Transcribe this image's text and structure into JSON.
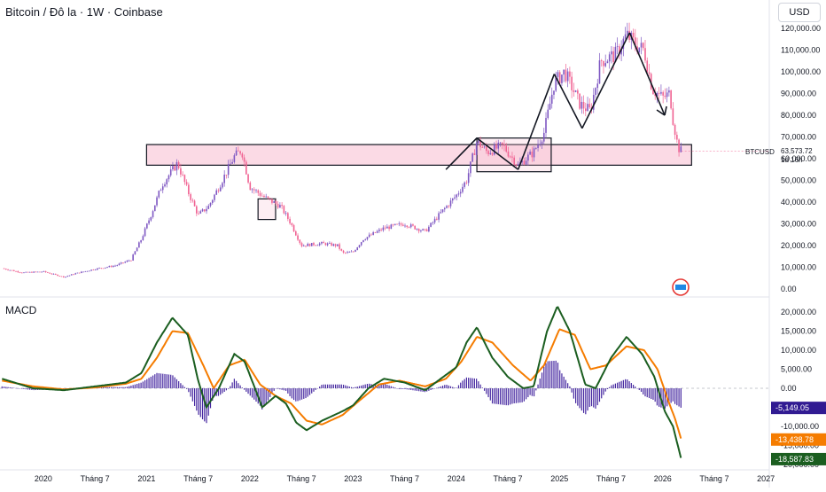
{
  "header": {
    "symbol_title": "Bitcoin / Đô la · 1W · Coinbase",
    "currency": "USD"
  },
  "price_panel": {
    "symbol": "BTCUSD",
    "last_price": "63,573.72",
    "countdown": "1d 16h"
  },
  "macd_panel": {
    "title": "MACD",
    "values": [
      {
        "label": "-5,149.05",
        "value": -5149.05,
        "color": "#311b92"
      },
      {
        "label": "-13,438.78",
        "value": -13438.78,
        "color": "#f57c00"
      },
      {
        "label": "-18,587.83",
        "value": -18587.83,
        "color": "#1b5e20"
      }
    ]
  },
  "colors": {
    "up_candle": "#7e57c2",
    "down_candle": "#f06292",
    "zone_fill": "#f8bbd0",
    "macd_line": "#1b5e20",
    "signal_line": "#f57c00",
    "histogram": "#4527a0"
  },
  "chart_data": [
    {
      "type": "candlestick",
      "title": "Bitcoin / Đô la · 1W · Coinbase",
      "y_axis": {
        "ticks": [
          0,
          10000,
          20000,
          30000,
          40000,
          50000,
          60000,
          70000,
          80000,
          90000,
          100000,
          110000,
          120000
        ],
        "tick_labels": [
          "0.00",
          "10,000.00",
          "20,000.00",
          "30,000.00",
          "40,000.00",
          "50,000.00",
          "60,000.00",
          "70,000.00",
          "80,000.00",
          "90,000.00",
          "100,000.00",
          "110,000.00",
          "120,000.00"
        ]
      },
      "x_axis": {
        "tick_labels": [
          "2020",
          "Tháng 7",
          "2021",
          "Tháng 7",
          "2022",
          "Tháng 7",
          "2023",
          "Tháng 7",
          "2024",
          "Tháng 7",
          "2025",
          "Tháng 7",
          "2026",
          "Tháng 7",
          "2027"
        ]
      },
      "close_path": [
        {
          "x": 2019.6,
          "y": 9500
        },
        {
          "x": 2019.8,
          "y": 7500
        },
        {
          "x": 2020.0,
          "y": 8000
        },
        {
          "x": 2020.2,
          "y": 5500
        },
        {
          "x": 2020.3,
          "y": 7000
        },
        {
          "x": 2020.5,
          "y": 9200
        },
        {
          "x": 2020.7,
          "y": 10800
        },
        {
          "x": 2020.85,
          "y": 13500
        },
        {
          "x": 2020.95,
          "y": 23000
        },
        {
          "x": 2021.05,
          "y": 35000
        },
        {
          "x": 2021.15,
          "y": 48000
        },
        {
          "x": 2021.3,
          "y": 58000
        },
        {
          "x": 2021.4,
          "y": 45000
        },
        {
          "x": 2021.5,
          "y": 34000
        },
        {
          "x": 2021.6,
          "y": 38000
        },
        {
          "x": 2021.7,
          "y": 47000
        },
        {
          "x": 2021.85,
          "y": 61000
        },
        {
          "x": 2021.92,
          "y": 64000
        },
        {
          "x": 2022.0,
          "y": 47000
        },
        {
          "x": 2022.15,
          "y": 42000
        },
        {
          "x": 2022.3,
          "y": 38000
        },
        {
          "x": 2022.4,
          "y": 30000
        },
        {
          "x": 2022.5,
          "y": 20000
        },
        {
          "x": 2022.7,
          "y": 21000
        },
        {
          "x": 2022.85,
          "y": 20000
        },
        {
          "x": 2022.9,
          "y": 16500
        },
        {
          "x": 2023.0,
          "y": 17000
        },
        {
          "x": 2023.1,
          "y": 23000
        },
        {
          "x": 2023.3,
          "y": 28000
        },
        {
          "x": 2023.5,
          "y": 30000
        },
        {
          "x": 2023.7,
          "y": 26500
        },
        {
          "x": 2023.85,
          "y": 35000
        },
        {
          "x": 2024.0,
          "y": 43000
        },
        {
          "x": 2024.1,
          "y": 50000
        },
        {
          "x": 2024.2,
          "y": 68000
        },
        {
          "x": 2024.3,
          "y": 63000
        },
        {
          "x": 2024.45,
          "y": 66000
        },
        {
          "x": 2024.6,
          "y": 57000
        },
        {
          "x": 2024.75,
          "y": 63000
        },
        {
          "x": 2024.85,
          "y": 72000
        },
        {
          "x": 2024.95,
          "y": 95000
        },
        {
          "x": 2025.05,
          "y": 100000
        },
        {
          "x": 2025.2,
          "y": 85000
        },
        {
          "x": 2025.3,
          "y": 82000
        },
        {
          "x": 2025.4,
          "y": 105000
        },
        {
          "x": 2025.55,
          "y": 108000
        },
        {
          "x": 2025.65,
          "y": 117000
        },
        {
          "x": 2025.75,
          "y": 112000
        },
        {
          "x": 2025.82,
          "y": 110000
        },
        {
          "x": 2025.9,
          "y": 92000
        },
        {
          "x": 2026.0,
          "y": 88000
        },
        {
          "x": 2026.07,
          "y": 90000
        },
        {
          "x": 2026.1,
          "y": 78000
        },
        {
          "x": 2026.15,
          "y": 65000
        },
        {
          "x": 2026.18,
          "y": 63573.72
        }
      ],
      "zones": [
        {
          "x_from": 2021.0,
          "x_to": 2026.28,
          "y_from": 57000,
          "y_to": 66500
        },
        {
          "x_from": 2024.2,
          "x_to": 2024.92,
          "y_from": 54000,
          "y_to": 69500
        },
        {
          "x_from": 2022.08,
          "x_to": 2022.25,
          "y_from": 32000,
          "y_to": 41500
        }
      ]
    },
    {
      "type": "line",
      "title": "MACD",
      "y_axis": {
        "ticks": [
          -20000,
          -15000,
          -10000,
          -5000,
          0,
          5000,
          10000,
          15000,
          20000
        ],
        "tick_labels": [
          "-20,000.00",
          "-15,000.00",
          "-10,000.00",
          "-5,000.00",
          "0.00",
          "5,000.00",
          "10,000.00",
          "15,000.00",
          "20,000.00"
        ]
      },
      "series": [
        {
          "name": "MACD",
          "points": [
            {
              "x": 2019.6,
              "y": 2500
            },
            {
              "x": 2019.9,
              "y": 0
            },
            {
              "x": 2020.2,
              "y": -500
            },
            {
              "x": 2020.5,
              "y": 500
            },
            {
              "x": 2020.8,
              "y": 1500
            },
            {
              "x": 2020.95,
              "y": 4000
            },
            {
              "x": 2021.1,
              "y": 12000
            },
            {
              "x": 2021.25,
              "y": 18500
            },
            {
              "x": 2021.4,
              "y": 14000
            },
            {
              "x": 2021.5,
              "y": 2000
            },
            {
              "x": 2021.58,
              "y": -5000
            },
            {
              "x": 2021.7,
              "y": 0
            },
            {
              "x": 2021.85,
              "y": 9000
            },
            {
              "x": 2021.95,
              "y": 7000
            },
            {
              "x": 2022.05,
              "y": 0
            },
            {
              "x": 2022.12,
              "y": -5000
            },
            {
              "x": 2022.25,
              "y": -2000
            },
            {
              "x": 2022.35,
              "y": -4000
            },
            {
              "x": 2022.45,
              "y": -9000
            },
            {
              "x": 2022.55,
              "y": -11000
            },
            {
              "x": 2022.7,
              "y": -8500
            },
            {
              "x": 2022.9,
              "y": -6000
            },
            {
              "x": 2023.0,
              "y": -4500
            },
            {
              "x": 2023.15,
              "y": 0
            },
            {
              "x": 2023.3,
              "y": 2500
            },
            {
              "x": 2023.5,
              "y": 1500
            },
            {
              "x": 2023.7,
              "y": -500
            },
            {
              "x": 2023.85,
              "y": 2500
            },
            {
              "x": 2024.0,
              "y": 5500
            },
            {
              "x": 2024.1,
              "y": 12000
            },
            {
              "x": 2024.2,
              "y": 16000
            },
            {
              "x": 2024.35,
              "y": 8000
            },
            {
              "x": 2024.5,
              "y": 3000
            },
            {
              "x": 2024.65,
              "y": 0
            },
            {
              "x": 2024.75,
              "y": 500
            },
            {
              "x": 2024.88,
              "y": 15000
            },
            {
              "x": 2024.98,
              "y": 21500
            },
            {
              "x": 2025.1,
              "y": 15000
            },
            {
              "x": 2025.25,
              "y": 1000
            },
            {
              "x": 2025.35,
              "y": 0
            },
            {
              "x": 2025.5,
              "y": 8000
            },
            {
              "x": 2025.65,
              "y": 13500
            },
            {
              "x": 2025.8,
              "y": 9000
            },
            {
              "x": 2025.92,
              "y": 3000
            },
            {
              "x": 2026.02,
              "y": -6000
            },
            {
              "x": 2026.1,
              "y": -10000
            },
            {
              "x": 2026.18,
              "y": -18587.83
            }
          ]
        },
        {
          "name": "Signal",
          "points": [
            {
              "x": 2019.6,
              "y": 2000
            },
            {
              "x": 2019.9,
              "y": 500
            },
            {
              "x": 2020.2,
              "y": -300
            },
            {
              "x": 2020.5,
              "y": 200
            },
            {
              "x": 2020.8,
              "y": 1200
            },
            {
              "x": 2020.95,
              "y": 2500
            },
            {
              "x": 2021.1,
              "y": 8000
            },
            {
              "x": 2021.25,
              "y": 15000
            },
            {
              "x": 2021.4,
              "y": 14500
            },
            {
              "x": 2021.55,
              "y": 6000
            },
            {
              "x": 2021.65,
              "y": 0
            },
            {
              "x": 2021.8,
              "y": 6000
            },
            {
              "x": 2021.95,
              "y": 7500
            },
            {
              "x": 2022.1,
              "y": 1000
            },
            {
              "x": 2022.25,
              "y": -2000
            },
            {
              "x": 2022.4,
              "y": -4000
            },
            {
              "x": 2022.55,
              "y": -8500
            },
            {
              "x": 2022.7,
              "y": -9500
            },
            {
              "x": 2022.9,
              "y": -7000
            },
            {
              "x": 2023.05,
              "y": -3500
            },
            {
              "x": 2023.25,
              "y": 1000
            },
            {
              "x": 2023.45,
              "y": 2000
            },
            {
              "x": 2023.7,
              "y": 500
            },
            {
              "x": 2023.9,
              "y": 2500
            },
            {
              "x": 2024.05,
              "y": 7000
            },
            {
              "x": 2024.2,
              "y": 13500
            },
            {
              "x": 2024.35,
              "y": 12000
            },
            {
              "x": 2024.55,
              "y": 6000
            },
            {
              "x": 2024.72,
              "y": 2000
            },
            {
              "x": 2024.85,
              "y": 6000
            },
            {
              "x": 2025.0,
              "y": 15500
            },
            {
              "x": 2025.15,
              "y": 14000
            },
            {
              "x": 2025.3,
              "y": 5000
            },
            {
              "x": 2025.45,
              "y": 6000
            },
            {
              "x": 2025.65,
              "y": 11000
            },
            {
              "x": 2025.82,
              "y": 10000
            },
            {
              "x": 2025.95,
              "y": 5000
            },
            {
              "x": 2026.05,
              "y": -3000
            },
            {
              "x": 2026.12,
              "y": -8000
            },
            {
              "x": 2026.18,
              "y": -13438.78
            }
          ]
        }
      ],
      "histogram_last": -5149.05
    }
  ]
}
